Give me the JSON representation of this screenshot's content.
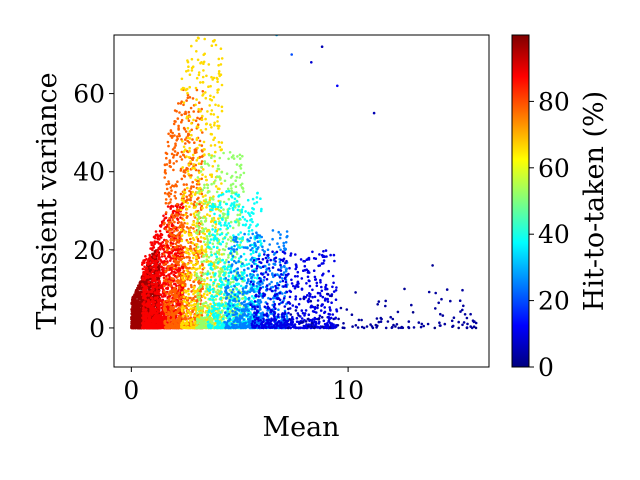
{
  "chart_data": {
    "type": "scatter",
    "title": "",
    "xlabel": "Mean",
    "ylabel": "Transient variance",
    "xlim": [
      -0.8,
      16.5
    ],
    "ylim": [
      -10,
      75
    ],
    "xticks": [
      0,
      10
    ],
    "yticks": [
      0,
      20,
      40,
      60
    ],
    "grid": false,
    "colorbar": {
      "label": "Hit-to-taken (%)",
      "colormap": "jet",
      "range": [
        0,
        100
      ],
      "ticks": [
        0,
        20,
        40,
        60,
        80
      ]
    },
    "regions": [
      {
        "color_value": 97,
        "mean_range": [
          0.0,
          1.3
        ],
        "variance_max": 20,
        "count": 1600
      },
      {
        "color_value": 88,
        "mean_range": [
          0.5,
          2.4
        ],
        "variance_max": 32,
        "count": 1300
      },
      {
        "color_value": 78,
        "mean_range": [
          1.5,
          3.3
        ],
        "variance_max": 62,
        "count": 900
      },
      {
        "color_value": 66,
        "mean_range": [
          2.3,
          4.2
        ],
        "variance_max": 75,
        "count": 700
      },
      {
        "color_value": 52,
        "mean_range": [
          3.0,
          5.2
        ],
        "variance_max": 45,
        "count": 650
      },
      {
        "color_value": 38,
        "mean_range": [
          3.5,
          6.0
        ],
        "variance_max": 35,
        "count": 650
      },
      {
        "color_value": 25,
        "mean_range": [
          4.3,
          7.2
        ],
        "variance_max": 25,
        "count": 600
      },
      {
        "color_value": 10,
        "mean_range": [
          5.5,
          9.5
        ],
        "variance_max": 20,
        "count": 550
      },
      {
        "color_value": 3,
        "mean_range": [
          7.0,
          16.0
        ],
        "variance_max": 10,
        "count": 120
      }
    ],
    "sparse_points": [
      {
        "x": 6.7,
        "y": 75,
        "v": 30
      },
      {
        "x": 7.4,
        "y": 70,
        "v": 20
      },
      {
        "x": 8.8,
        "y": 72,
        "v": 5
      },
      {
        "x": 8.3,
        "y": 68,
        "v": 8
      },
      {
        "x": 11.2,
        "y": 55,
        "v": 5
      },
      {
        "x": 9.5,
        "y": 62,
        "v": 12
      },
      {
        "x": 13.9,
        "y": 16,
        "v": 2
      },
      {
        "x": 12.6,
        "y": 10,
        "v": 2
      },
      {
        "x": 13.0,
        "y": 4,
        "v": 1
      },
      {
        "x": 14.0,
        "y": 0,
        "v": 0
      },
      {
        "x": 15.1,
        "y": 0,
        "v": 0
      },
      {
        "x": 15.9,
        "y": 0,
        "v": 0
      }
    ]
  }
}
